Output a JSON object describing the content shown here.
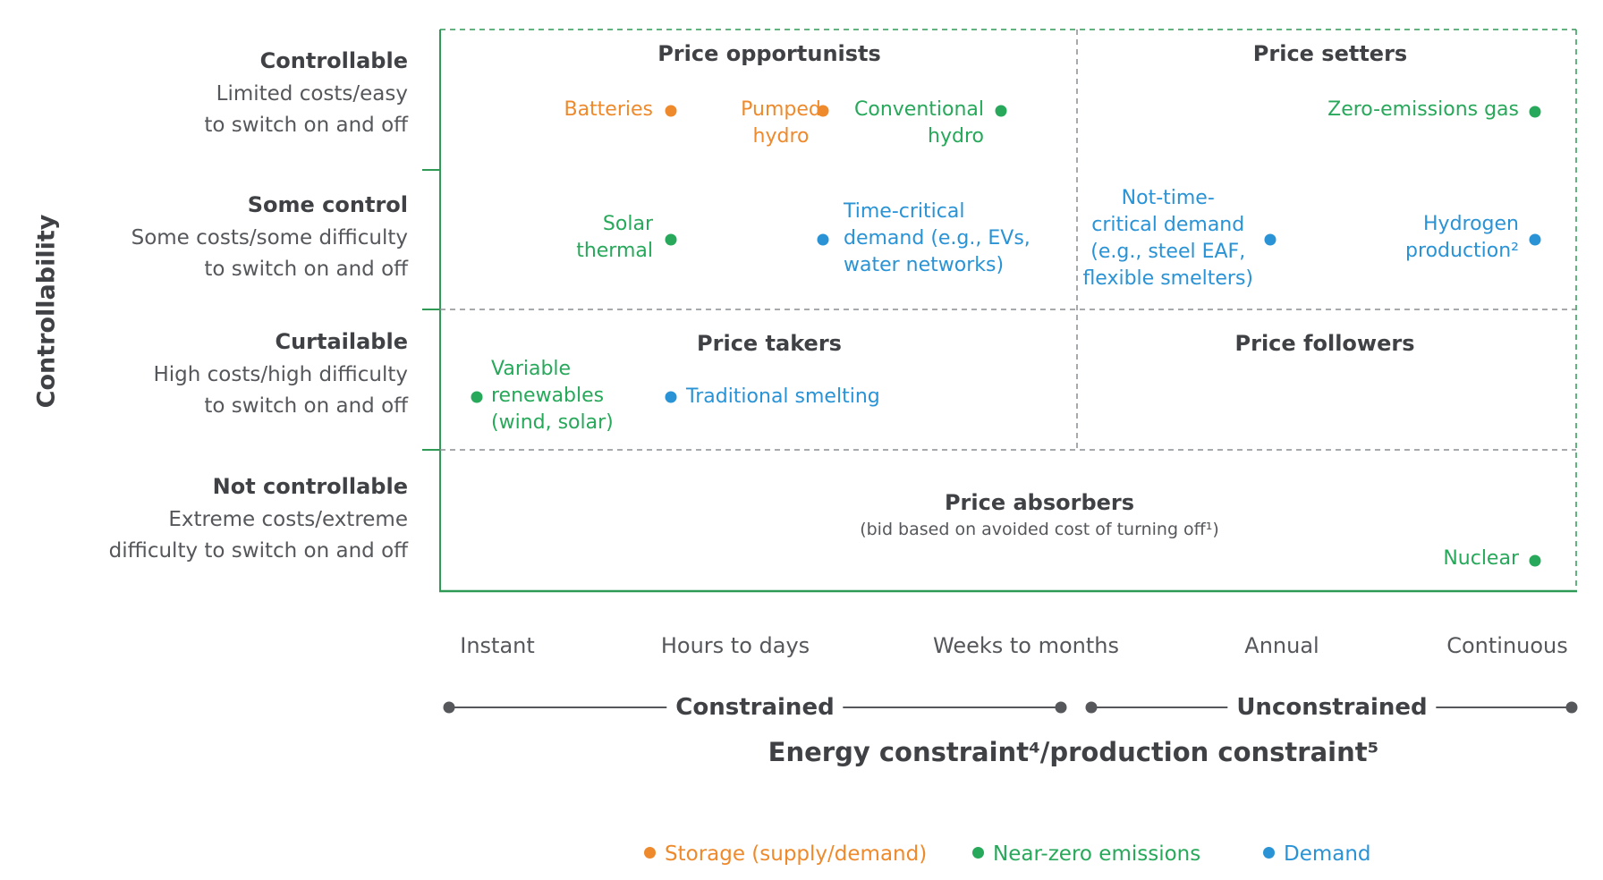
{
  "colors": {
    "storage": "#ee8a2c",
    "near_zero": "#27a85a",
    "demand": "#2a93d5",
    "frame": "#2e9a55",
    "grid": "#8a8d91"
  },
  "y_axis_title": "Controllability",
  "rows": [
    {
      "title": "Controllable",
      "desc": [
        "Limited costs/easy",
        "to switch on and off"
      ]
    },
    {
      "title": "Some control",
      "desc": [
        "Some costs/some difficulty",
        "to switch on and off"
      ]
    },
    {
      "title": "Curtailable",
      "desc": [
        "High costs/high difficulty",
        "to switch on and off"
      ]
    },
    {
      "title": "Not controllable",
      "desc": [
        "Extreme costs/extreme",
        "difficulty to switch on and off"
      ]
    }
  ],
  "quadrants": {
    "opportunists": "Price opportunists",
    "setters": "Price setters",
    "takers": "Price takers",
    "followers": "Price followers",
    "absorbers": "Price absorbers",
    "absorbers_sub": "(bid based on avoided cost of turning off¹)"
  },
  "items": {
    "batteries": [
      "Batteries"
    ],
    "pumped_hydro": [
      "Pumped",
      "hydro"
    ],
    "conventional_hydro": [
      "Conventional",
      "hydro"
    ],
    "zero_emissions_gas": [
      "Zero-emissions gas"
    ],
    "solar_thermal": [
      "Solar",
      "thermal"
    ],
    "time_critical": [
      "Time-critical",
      "demand (e.g., EVs,",
      "water networks)"
    ],
    "not_time_critical": [
      "Not-time-",
      "critical demand",
      "(e.g., steel EAF,",
      "flexible smelters)"
    ],
    "hydrogen": [
      "Hydrogen",
      "production²"
    ],
    "variable_renewables": [
      "Variable",
      "renewables",
      "(wind, solar)"
    ],
    "traditional_smelting": [
      "Traditional smelting"
    ],
    "nuclear": [
      "Nuclear"
    ]
  },
  "x_ticks": [
    "Instant",
    "Hours to days",
    "Weeks to months",
    "Annual",
    "Continuous"
  ],
  "x_groups": {
    "constrained": "Constrained",
    "unconstrained": "Unconstrained"
  },
  "x_axis_title": "Energy constraint⁴/production constraint⁵",
  "legend": [
    "Storage (supply/demand)",
    "Near-zero emissions",
    "Demand"
  ]
}
